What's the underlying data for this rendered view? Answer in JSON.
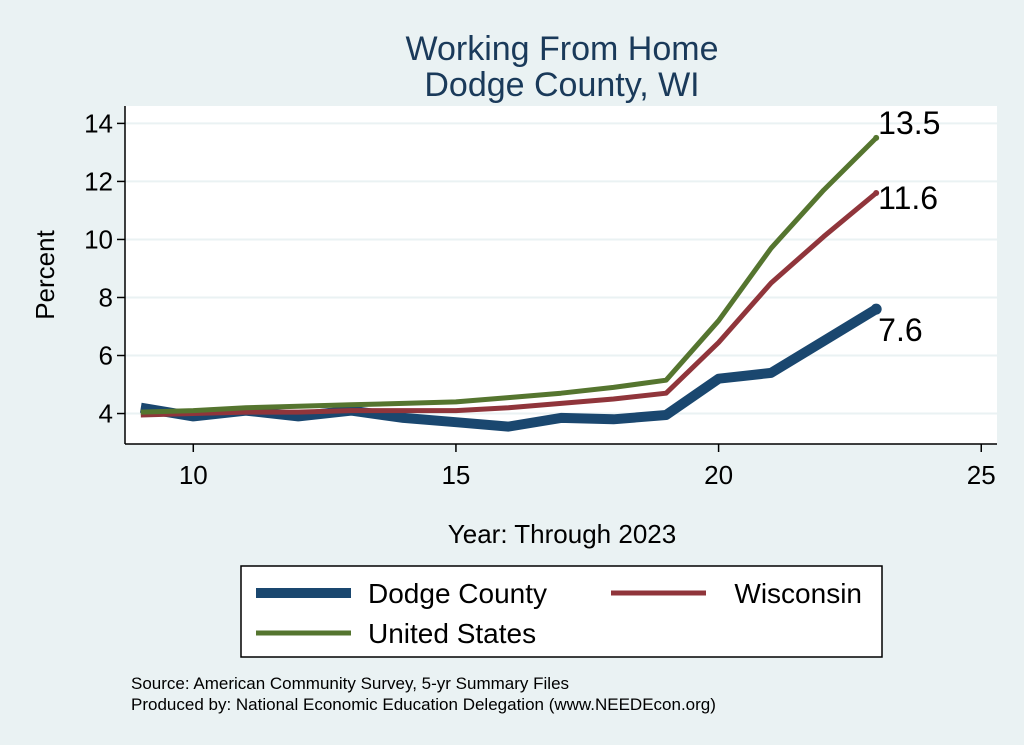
{
  "chart_data": {
    "type": "line",
    "title": "Working From Home",
    "subtitle": "Dodge County, WI",
    "xlabel": "Year: Through 2023",
    "ylabel": "Percent",
    "xlim": [
      8.7,
      25.3
    ],
    "ylim": [
      2.95,
      14.6
    ],
    "xticks": [
      10,
      15,
      20,
      25
    ],
    "yticks": [
      4,
      6,
      8,
      10,
      12,
      14
    ],
    "grid": true,
    "legend_position": "bottom",
    "series": [
      {
        "name": "Dodge County",
        "color": "#1a476f",
        "width": 10,
        "x": [
          9,
          10,
          11,
          12,
          13,
          14,
          15,
          16,
          17,
          18,
          19,
          20,
          21,
          22,
          23
        ],
        "y": [
          4.2,
          3.9,
          4.1,
          3.9,
          4.1,
          3.85,
          3.7,
          3.55,
          3.85,
          3.8,
          3.95,
          5.2,
          5.4,
          6.5,
          7.6
        ],
        "end_label": "7.6"
      },
      {
        "name": "Wisconsin",
        "color": "#90353b",
        "width": 5,
        "x": [
          9,
          10,
          11,
          12,
          13,
          14,
          15,
          16,
          17,
          18,
          19,
          20,
          21,
          22,
          23
        ],
        "y": [
          3.95,
          4.0,
          4.05,
          4.05,
          4.1,
          4.1,
          4.1,
          4.2,
          4.35,
          4.5,
          4.7,
          6.45,
          8.5,
          10.1,
          11.6
        ],
        "end_label": "11.6"
      },
      {
        "name": "United States",
        "color": "#55752f",
        "width": 5,
        "x": [
          9,
          10,
          11,
          12,
          13,
          14,
          15,
          16,
          17,
          18,
          19,
          20,
          21,
          22,
          23
        ],
        "y": [
          4.05,
          4.1,
          4.2,
          4.25,
          4.3,
          4.35,
          4.4,
          4.55,
          4.7,
          4.9,
          5.15,
          7.2,
          9.7,
          11.7,
          13.5
        ],
        "end_label": "13.5"
      }
    ],
    "notes": [
      "Source: American Community Survey, 5-yr Summary Files",
      "Produced by: National Economic Education Delegation (www.NEEDEcon.org)"
    ]
  }
}
